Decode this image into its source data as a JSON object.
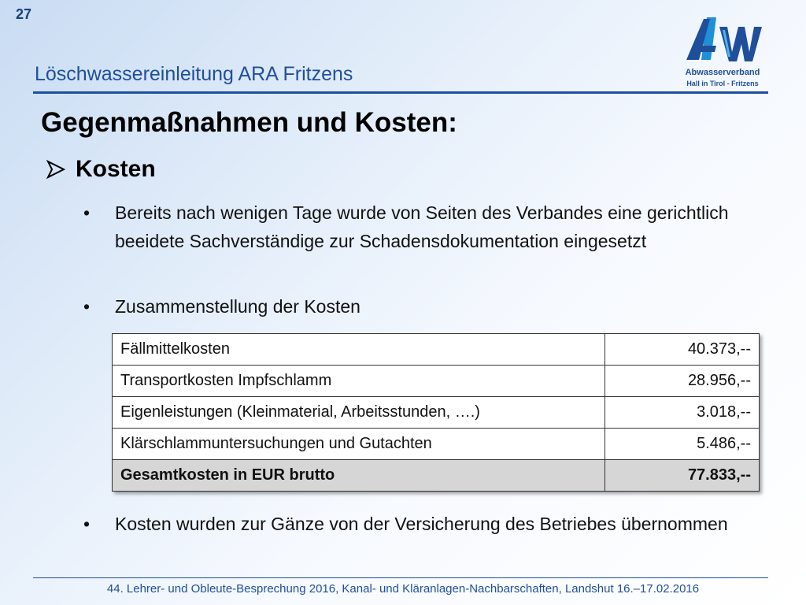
{
  "slide_number": "27",
  "subtitle": "Löschwassereinleitung ARA Fritzens",
  "logo": {
    "mark": "AWV",
    "line1": "Abwasserverband",
    "line2": "Hall in Tirol - Fritzens",
    "color": "#1f4f9a"
  },
  "title": "Gegenmaßnahmen und Kosten:",
  "section": {
    "label": "Kosten",
    "icon": "arrow-bullet-icon"
  },
  "bullets": [
    "Bereits nach wenigen Tage wurde von Seiten des Verbandes eine gerichtlich beeidete Sachverständige zur Schadensdokumentation eingesetzt",
    "Zusammenstellung der Kosten",
    "Kosten wurden zur Gänze von der Versicherung des Betriebes übernommen"
  ],
  "bullet_glyph": "•",
  "cost_table": {
    "rows": [
      {
        "label": "Fällmittelkosten",
        "amount": "40.373,--"
      },
      {
        "label": "Transportkosten Impfschlamm",
        "amount": "28.956,--"
      },
      {
        "label": "Eigenleistungen (Kleinmaterial, Arbeitsstunden, ….)",
        "amount": "3.018,--"
      },
      {
        "label": "Klärschlammuntersuchungen und Gutachten",
        "amount": "5.486,--"
      }
    ],
    "total": {
      "label": "Gesamtkosten in EUR brutto",
      "amount": "77.833,--"
    }
  },
  "footer": "44. Lehrer- und Obleute-Besprechung 2016, Kanal- und Kläranlagen-Nachbarschaften, Landshut 16.–17.02.2016",
  "colors": {
    "accent": "#1e4fa0",
    "text": "#111111",
    "total_row_bg": "#d6d6d6"
  }
}
